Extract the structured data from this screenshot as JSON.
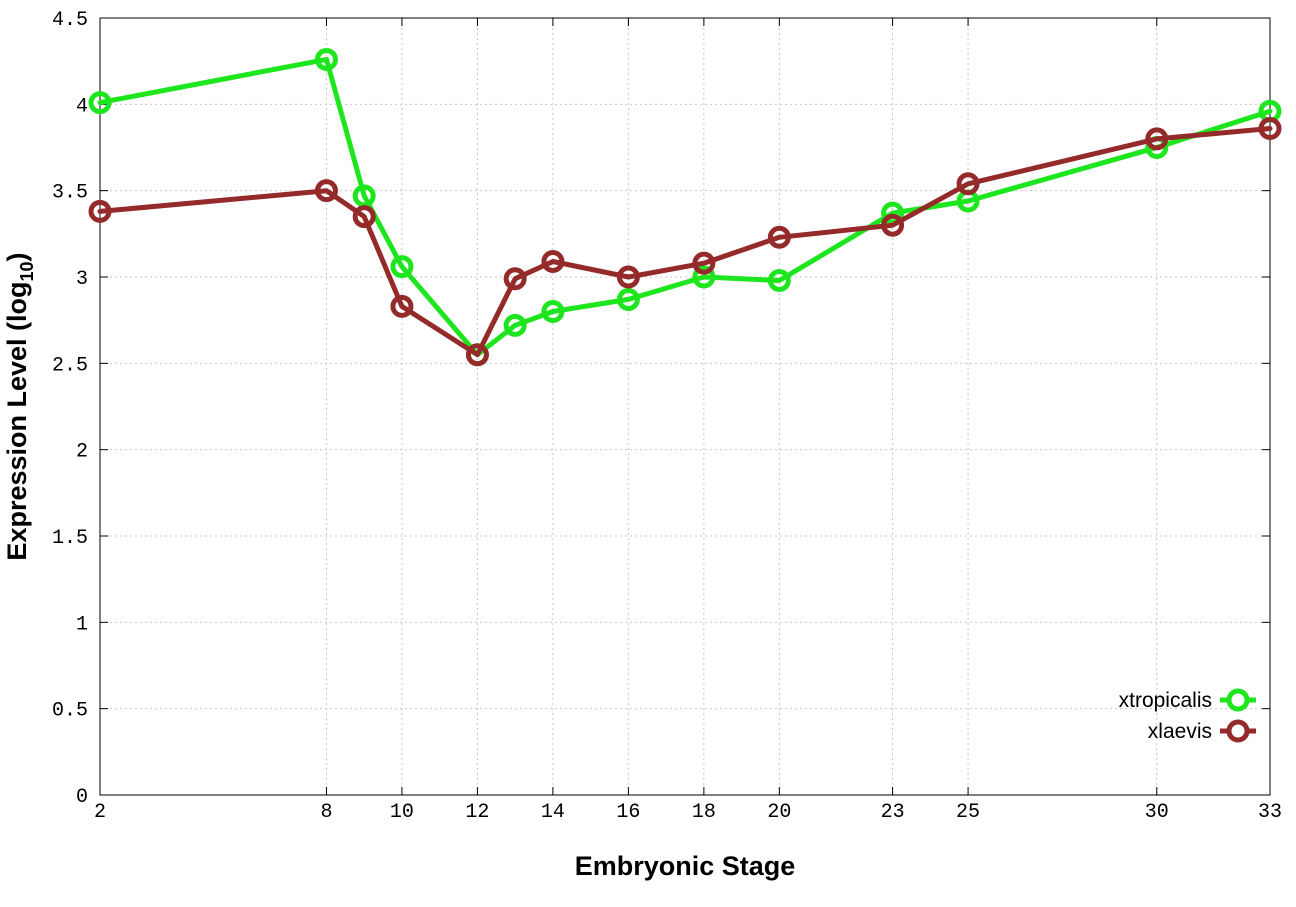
{
  "chart_data": {
    "type": "line",
    "title": "",
    "xlabel": "Embryonic Stage",
    "ylabel_main": "Expression Level (log",
    "ylabel_sub": "10",
    "ylabel_close": ")",
    "x": [
      2,
      8,
      9,
      10,
      12,
      13,
      14,
      16,
      18,
      20,
      23,
      25,
      30,
      33
    ],
    "x_ticks": [
      2,
      8,
      10,
      12,
      14,
      16,
      18,
      20,
      23,
      25,
      30,
      33
    ],
    "x_tick_labels": [
      "2",
      "8",
      "10",
      "12",
      "14",
      "16",
      "18",
      "20",
      "23",
      "25",
      "30",
      "33"
    ],
    "xlim": [
      2,
      33
    ],
    "ylim": [
      0,
      4.5
    ],
    "y_ticks": [
      0,
      0.5,
      1,
      1.5,
      2,
      2.5,
      3,
      3.5,
      4,
      4.5
    ],
    "y_tick_labels": [
      "0",
      "0.5",
      "1",
      "1.5",
      "2",
      "2.5",
      "3",
      "3.5",
      "4",
      "4.5"
    ],
    "grid": true,
    "legend_position": "bottom-right",
    "series": [
      {
        "name": "xtropicalis",
        "color": "#1ee61e",
        "values": [
          4.01,
          4.26,
          3.47,
          3.06,
          2.55,
          2.72,
          2.8,
          2.87,
          3.0,
          2.98,
          3.37,
          3.44,
          3.75,
          3.96
        ]
      },
      {
        "name": "xlaevis",
        "color": "#952a2a",
        "values": [
          3.38,
          3.5,
          3.35,
          2.83,
          2.55,
          2.99,
          3.09,
          3.0,
          3.08,
          3.23,
          3.3,
          3.54,
          3.8,
          3.86
        ]
      }
    ]
  }
}
